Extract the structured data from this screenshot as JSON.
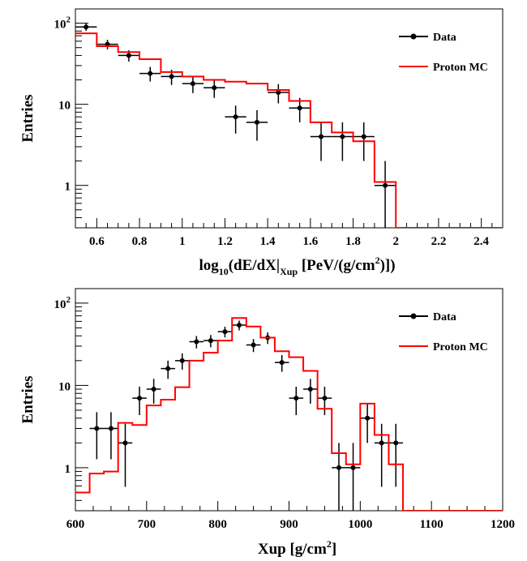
{
  "chart_data": [
    {
      "type": "histogram",
      "title": "",
      "xlabel": {
        "main": "log",
        "sub1": "10",
        "mid": "(dE/dX|",
        "sub2": "Xup",
        "unit_pre": " [PeV/(g/cm",
        "sup": "2",
        "unit_post": ")])"
      },
      "ylabel": "Entries",
      "xlim": [
        0.5,
        2.5
      ],
      "ylim": [
        0.3,
        150
      ],
      "yscale": "log",
      "xticks": [
        0.6,
        0.8,
        1,
        1.2,
        1.4,
        1.6,
        1.8,
        2,
        2.2,
        2.4
      ],
      "xtick_labels": [
        "0.6",
        "0.8",
        "1",
        "1.2",
        "1.4",
        "1.6",
        "1.8",
        "2",
        "2.2",
        "2.4"
      ],
      "yticks": [
        1,
        10,
        100
      ],
      "ytick_labels": [
        {
          "base": "1",
          "sup": ""
        },
        {
          "base": "10",
          "sup": ""
        },
        {
          "base": "10",
          "sup": "2"
        }
      ],
      "legend_position": "top-right",
      "series": [
        {
          "name": "Data",
          "kind": "points",
          "color": "#000000",
          "x": [
            0.55,
            0.65,
            0.75,
            0.85,
            0.95,
            1.05,
            1.15,
            1.25,
            1.35,
            1.45,
            1.55,
            1.65,
            1.75,
            1.85,
            1.95
          ],
          "y": [
            90,
            55,
            40,
            24,
            22,
            18,
            16,
            7,
            6,
            14,
            9,
            4,
            4,
            4,
            1
          ],
          "xerr": 0.05
        },
        {
          "name": "Proton MC",
          "kind": "step",
          "color": "#ff0000",
          "bin_edges": [
            0.5,
            0.6,
            0.7,
            0.8,
            0.9,
            1.0,
            1.1,
            1.2,
            1.3,
            1.4,
            1.5,
            1.6,
            1.7,
            1.8,
            1.9,
            2.0,
            2.5
          ],
          "values": [
            75,
            52,
            44,
            36,
            25,
            22,
            20,
            19,
            18,
            15,
            11,
            6,
            4.5,
            3.5,
            1.1,
            0.3
          ]
        }
      ]
    },
    {
      "type": "histogram",
      "title": "",
      "xlabel": {
        "main": "Xup [g/cm",
        "sup": "2",
        "post": "]"
      },
      "ylabel": "Entries",
      "xlim": [
        600,
        1200
      ],
      "ylim": [
        0.3,
        150
      ],
      "yscale": "log",
      "xticks": [
        600,
        700,
        800,
        900,
        1000,
        1100,
        1200
      ],
      "xtick_labels": [
        "600",
        "700",
        "800",
        "900",
        "1000",
        "1100",
        "1200"
      ],
      "yticks": [
        1,
        10,
        100
      ],
      "ytick_labels": [
        {
          "base": "1",
          "sup": ""
        },
        {
          "base": "10",
          "sup": ""
        },
        {
          "base": "10",
          "sup": "2"
        }
      ],
      "legend_position": "top-right",
      "series": [
        {
          "name": "Data",
          "kind": "points",
          "color": "#000000",
          "x": [
            630,
            650,
            670,
            690,
            710,
            730,
            750,
            770,
            790,
            810,
            830,
            850,
            870,
            890,
            910,
            930,
            950,
            970,
            990,
            1010,
            1030,
            1050
          ],
          "y": [
            3,
            3,
            2,
            7,
            9,
            16,
            20,
            34,
            35,
            45,
            54,
            31,
            38,
            19,
            7,
            9,
            7,
            1,
            1,
            4,
            2,
            2
          ],
          "xerr": 10
        },
        {
          "name": "Proton MC",
          "kind": "step",
          "color": "#ff0000",
          "bin_edges": [
            600,
            620,
            640,
            660,
            680,
            700,
            720,
            740,
            760,
            780,
            800,
            820,
            840,
            860,
            880,
            900,
            920,
            940,
            960,
            980,
            1000,
            1020,
            1040,
            1060,
            1200
          ],
          "values": [
            0.5,
            0.85,
            0.9,
            3.5,
            3.3,
            5.7,
            6.7,
            9.5,
            20,
            25,
            35,
            66,
            52,
            38,
            26,
            22,
            15,
            5.2,
            1.5,
            1.1,
            6,
            2.5,
            1.1,
            0.3
          ]
        }
      ]
    }
  ]
}
